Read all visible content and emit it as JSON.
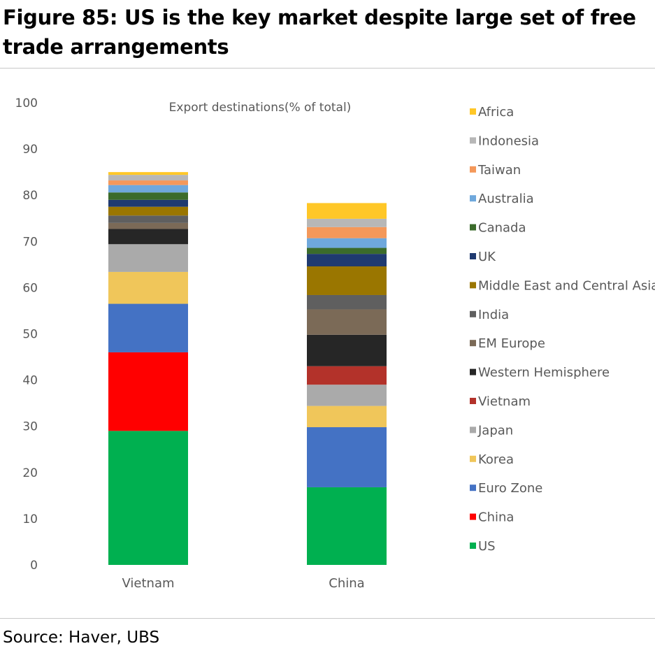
{
  "header": {
    "title": "Figure 85: US is the key market despite large set of free trade arrangements"
  },
  "footer": {
    "source": "Source: Haver, UBS"
  },
  "chart_data": {
    "type": "bar",
    "stacked": true,
    "title": "Export destinations(% of total)",
    "xlabel": "",
    "ylabel": "",
    "categories": [
      "Vietnam",
      "China"
    ],
    "ylim": [
      0,
      100
    ],
    "yticks": [
      0,
      10,
      20,
      30,
      40,
      50,
      60,
      70,
      80,
      90,
      100
    ],
    "grid": false,
    "legend_position": "right",
    "series": [
      {
        "name": "US",
        "color": "#00b050",
        "values": [
          29.0,
          16.8
        ]
      },
      {
        "name": "China",
        "color": "#ff0000",
        "values": [
          17.0,
          0
        ]
      },
      {
        "name": "Euro Zone",
        "color": "#4472c4",
        "values": [
          10.5,
          13.0
        ]
      },
      {
        "name": "Korea",
        "color": "#f0c65a",
        "values": [
          6.9,
          4.6
        ]
      },
      {
        "name": "Japan",
        "color": "#aaaaaa",
        "values": [
          6.0,
          4.6
        ]
      },
      {
        "name": "Vietnam",
        "color": "#b3322a",
        "values": [
          0,
          4.0
        ]
      },
      {
        "name": "Western Hemisphere",
        "color": "#262626",
        "values": [
          3.3,
          6.8
        ]
      },
      {
        "name": "EM Europe",
        "color": "#7b6a57",
        "values": [
          1.3,
          5.5
        ]
      },
      {
        "name": "India",
        "color": "#5f5f5f",
        "values": [
          1.6,
          3.1
        ]
      },
      {
        "name": "Middle East and Central Asia",
        "color": "#9a7600",
        "values": [
          1.9,
          6.2
        ]
      },
      {
        "name": "UK",
        "color": "#1f3a70",
        "values": [
          1.5,
          2.7
        ]
      },
      {
        "name": "Canada",
        "color": "#3b6b2b",
        "values": [
          1.6,
          1.3
        ]
      },
      {
        "name": "Australia",
        "color": "#6fa8dc",
        "values": [
          1.6,
          2.1
        ]
      },
      {
        "name": "Taiwan",
        "color": "#f4985a",
        "values": [
          1.0,
          2.4
        ]
      },
      {
        "name": "Indonesia",
        "color": "#b7b7b7",
        "values": [
          1.2,
          1.8
        ]
      },
      {
        "name": "Africa",
        "color": "#ffc727",
        "values": [
          0.6,
          3.4
        ]
      }
    ]
  }
}
